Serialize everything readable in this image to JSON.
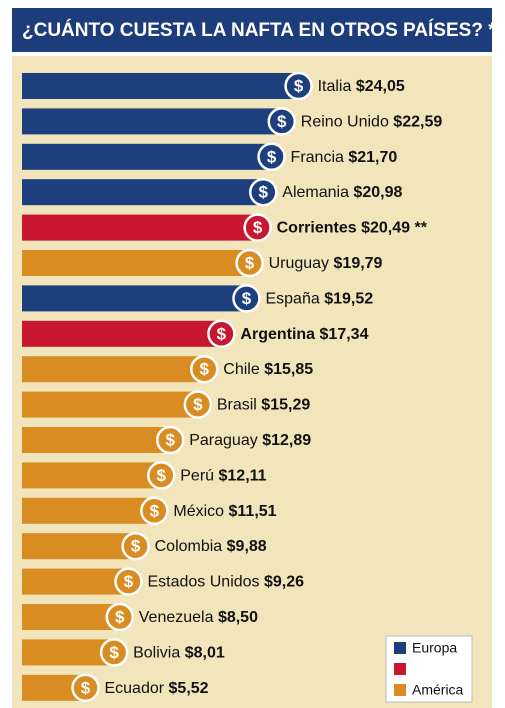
{
  "chart_data": {
    "type": "bar",
    "orientation": "horizontal",
    "title": "¿CUÁNTO CUESTA LA NAFTA EN OTROS PAÍSES? *",
    "categories": [
      "Italia",
      "Reino Unido",
      "Francia",
      "Alemania",
      "Corrientes",
      "Uruguay",
      "España",
      "Argentina",
      "Chile",
      "Brasil",
      "Paraguay",
      "Perú",
      "México",
      "Colombia",
      "Estados Unidos",
      "Venezuela",
      "Bolivia",
      "Ecuador"
    ],
    "values": [
      24.05,
      22.59,
      21.7,
      20.98,
      20.49,
      19.79,
      19.52,
      17.34,
      15.85,
      15.29,
      12.89,
      12.11,
      11.51,
      9.88,
      9.26,
      8.5,
      8.01,
      5.52
    ],
    "value_labels": [
      "$24,05",
      "$22,59",
      "$21,70",
      "$20,98",
      "$20,49",
      "$19,79",
      "$19,52",
      "$17,34",
      "$15,85",
      "$15,29",
      "$12,89",
      "$12,11",
      "$11,51",
      "$9,88",
      "$9,26",
      "$8,50",
      "$8,01",
      "$5,52"
    ],
    "colors": [
      "#1e3f7e",
      "#1e3f7e",
      "#1e3f7e",
      "#1e3f7e",
      "#c8172f",
      "#d98c22",
      "#1e3f7e",
      "#c8172f",
      "#d98c22",
      "#d98c22",
      "#d98c22",
      "#d98c22",
      "#d98c22",
      "#d98c22",
      "#d98c22",
      "#d98c22",
      "#d98c22",
      "#d98c22"
    ],
    "coin_symbol": "$",
    "annotations": [
      {
        "category": "Corrientes",
        "text": "**"
      }
    ],
    "legend": [
      {
        "name": "Europa",
        "color": "#1e3f7e"
      },
      {
        "name": null,
        "color": "#c8172f"
      },
      {
        "name": "América",
        "color": "#d98c22"
      }
    ],
    "legend_position": "lower right"
  }
}
